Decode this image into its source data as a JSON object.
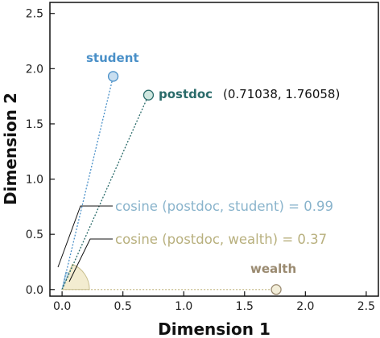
{
  "chart_data": {
    "type": "scatter",
    "xlabel": "Dimension 1",
    "ylabel": "Dimension 2",
    "xlim": [
      -0.1,
      2.6
    ],
    "ylim": [
      -0.06,
      2.6
    ],
    "x_ticks": [
      "0.0",
      "0.5",
      "1.0",
      "1.5",
      "2.0",
      "2.5"
    ],
    "y_ticks": [
      "0.0",
      "0.5",
      "1.0",
      "1.5",
      "2.0",
      "2.5"
    ],
    "grid": false,
    "points": [
      {
        "label": "student",
        "x": 0.42,
        "y": 1.93,
        "color": "#4a90c8",
        "fill": "#c8def0",
        "label_position": "above"
      },
      {
        "label": "postdoc",
        "x": 0.71038,
        "y": 1.76058,
        "color": "#2a6b6a",
        "fill": "#cfe6df",
        "label_position": "right",
        "coord_text": "(0.71038, 1.76058)"
      },
      {
        "label": "wealth",
        "x": 1.76,
        "y": 0.0,
        "color": "#9a8a70",
        "fill": "#f3eed9",
        "label_position": "above"
      }
    ],
    "annotations": [
      {
        "text": "cosine (postdoc, student) = 0.99",
        "color": "#8ab4cc"
      },
      {
        "text": "cosine (postdoc, wealth) = 0.37",
        "color": "#b8b07e"
      }
    ],
    "colors": {
      "student_line": "#4a90c8",
      "postdoc_line": "#2a6b6a",
      "wealth_line": "#c9bf8e",
      "angle_fill": "#f3ecd0",
      "angle_stroke": "#c9bf8e"
    }
  }
}
